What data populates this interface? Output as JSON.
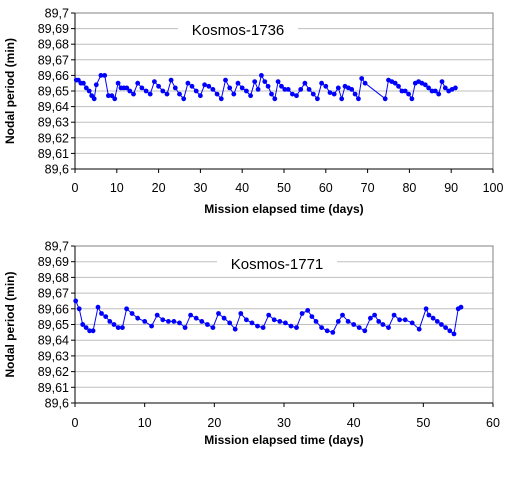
{
  "chart_data": [
    {
      "type": "line",
      "title": "Kosmos-1736",
      "xlabel": "Mission elapsed time (days)",
      "ylabel": "Nodal period (min)",
      "xlim": [
        0,
        100
      ],
      "ylim": [
        89.6,
        89.7
      ],
      "x_ticks": [
        "0",
        "10",
        "20",
        "30",
        "40",
        "50",
        "60",
        "70",
        "80",
        "90",
        "100"
      ],
      "y_ticks": [
        "89,6",
        "89,61",
        "89,62",
        "89,63",
        "89,64",
        "89,65",
        "89,66",
        "89,67",
        "89,68",
        "89,69",
        "89,7"
      ],
      "grid": "horizontal",
      "series": [
        {
          "color": "#0000ff",
          "x": [
            0.3,
            0.8,
            1.4,
            2.0,
            2.7,
            3.4,
            4.0,
            4.6,
            5.1,
            6.2,
            7.1,
            8.0,
            8.8,
            9.5,
            10.3,
            11.0,
            11.7,
            12.4,
            13.1,
            14.0,
            15.0,
            16.0,
            17.0,
            18.0,
            19.0,
            20.0,
            21.0,
            22.0,
            23.0,
            24.0,
            25.0,
            26.0,
            27.0,
            28.0,
            29.0,
            30.0,
            31.0,
            32.0,
            33.0,
            34.0,
            35.0,
            36.0,
            37.0,
            38.0,
            39.0,
            40.0,
            41.0,
            42.0,
            43.0,
            43.8,
            44.6,
            45.4,
            46.2,
            47.0,
            47.8,
            48.6,
            49.4,
            50.2,
            51.0,
            52.0,
            53.0,
            54.0,
            55.0,
            56.0,
            57.0,
            58.0,
            59.0,
            60.0,
            61.0,
            62.0,
            63.0,
            63.8,
            64.6,
            65.4,
            66.2,
            67.0,
            67.8,
            68.6,
            69.4,
            74.2,
            75.0,
            75.8,
            76.6,
            77.4,
            78.2,
            79.0,
            79.8,
            80.6,
            81.4,
            82.2,
            83.0,
            83.8,
            84.6,
            85.4,
            86.2,
            87.0,
            87.8,
            88.6,
            89.4,
            90.2,
            91.0
          ],
          "y": [
            89.657,
            89.657,
            89.655,
            89.655,
            89.652,
            89.65,
            89.647,
            89.645,
            89.654,
            89.66,
            89.66,
            89.647,
            89.647,
            89.645,
            89.655,
            89.652,
            89.652,
            89.652,
            89.65,
            89.648,
            89.655,
            89.652,
            89.65,
            89.648,
            89.656,
            89.653,
            89.65,
            89.648,
            89.657,
            89.652,
            89.648,
            89.645,
            89.655,
            89.653,
            89.65,
            89.647,
            89.654,
            89.653,
            89.651,
            89.648,
            89.645,
            89.657,
            89.652,
            89.648,
            89.655,
            89.652,
            89.65,
            89.647,
            89.656,
            89.651,
            89.66,
            89.656,
            89.653,
            89.648,
            89.645,
            89.656,
            89.653,
            89.651,
            89.651,
            89.648,
            89.647,
            89.651,
            89.655,
            89.651,
            89.648,
            89.645,
            89.655,
            89.653,
            89.649,
            89.648,
            89.652,
            89.645,
            89.653,
            89.652,
            89.651,
            89.648,
            89.645,
            89.658,
            89.655,
            89.645,
            89.657,
            89.656,
            89.655,
            89.653,
            89.65,
            89.65,
            89.648,
            89.645,
            89.655,
            89.656,
            89.655,
            89.654,
            89.652,
            89.65,
            89.65,
            89.648,
            89.656,
            89.652,
            89.65,
            89.651,
            89.652
          ]
        }
      ]
    },
    {
      "type": "line",
      "title": "Kosmos-1771",
      "xlabel": "Mission elapsed time (days)",
      "ylabel": "Nodal period (min)",
      "xlim": [
        0,
        60
      ],
      "ylim": [
        89.6,
        89.7
      ],
      "x_ticks": [
        "0",
        "10",
        "20",
        "30",
        "40",
        "50",
        "60"
      ],
      "y_ticks": [
        "89,6",
        "89,61",
        "89,62",
        "89,63",
        "89,64",
        "89,65",
        "89,66",
        "89,67",
        "89,68",
        "89,69",
        "89,7"
      ],
      "grid": "horizontal",
      "series": [
        {
          "color": "#0000ff",
          "x": [
            0.1,
            0.6,
            1.1,
            1.6,
            2.1,
            2.6,
            3.3,
            3.8,
            4.4,
            5.0,
            5.6,
            6.2,
            6.8,
            7.4,
            8.2,
            9.0,
            10.0,
            11.0,
            11.8,
            12.6,
            13.4,
            14.2,
            15.0,
            15.8,
            16.6,
            17.4,
            18.2,
            19.0,
            19.8,
            20.6,
            21.4,
            22.2,
            23.0,
            23.8,
            24.6,
            25.4,
            26.2,
            27.0,
            27.8,
            28.6,
            29.4,
            30.2,
            31.0,
            31.8,
            32.6,
            33.4,
            34.0,
            34.6,
            35.4,
            36.2,
            37.0,
            37.8,
            38.4,
            39.2,
            40.0,
            40.8,
            41.6,
            42.4,
            43.0,
            43.6,
            44.2,
            45.0,
            45.8,
            46.6,
            47.4,
            48.4,
            49.4,
            50.4,
            50.8,
            51.4,
            52.0,
            52.6,
            53.2,
            53.8,
            54.4,
            55.0,
            55.4
          ],
          "y": [
            89.665,
            89.66,
            89.65,
            89.648,
            89.646,
            89.646,
            89.661,
            89.657,
            89.655,
            89.652,
            89.65,
            89.648,
            89.648,
            89.66,
            89.657,
            89.654,
            89.652,
            89.649,
            89.656,
            89.653,
            89.652,
            89.652,
            89.651,
            89.648,
            89.656,
            89.654,
            89.652,
            89.65,
            89.648,
            89.657,
            89.654,
            89.651,
            89.647,
            89.657,
            89.653,
            89.651,
            89.649,
            89.648,
            89.656,
            89.653,
            89.652,
            89.651,
            89.649,
            89.648,
            89.657,
            89.659,
            89.655,
            89.652,
            89.648,
            89.646,
            89.645,
            89.652,
            89.656,
            89.652,
            89.65,
            89.648,
            89.646,
            89.654,
            89.656,
            89.652,
            89.65,
            89.648,
            89.656,
            89.653,
            89.653,
            89.651,
            89.647,
            89.66,
            89.656,
            89.654,
            89.652,
            89.65,
            89.648,
            89.646,
            89.644,
            89.66,
            89.661
          ]
        }
      ]
    }
  ]
}
